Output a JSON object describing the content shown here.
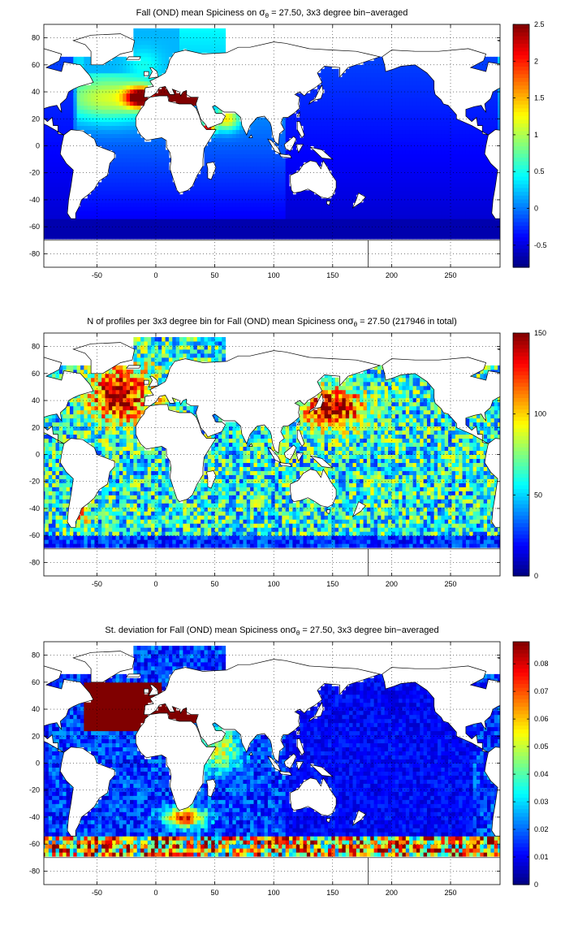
{
  "chart_data": [
    {
      "type": "heatmap",
      "subtype": "global-map-bin-averaged",
      "title_prefix": "Fall (OND) mean Spiciness on ",
      "title_sigma": "σ",
      "title_sub": "θ",
      "title_suffix": " = 27.50, 3x3 degree bin−averaged",
      "xlim": [
        -95,
        292
      ],
      "ylim": [
        -90,
        90
      ],
      "x_ticks": [
        -50,
        0,
        50,
        100,
        150,
        200,
        250
      ],
      "y_ticks": [
        -80,
        -60,
        -40,
        -20,
        0,
        20,
        40,
        60,
        80
      ],
      "grid": "dotted",
      "colorbar": {
        "min": -0.8,
        "max": 2.5,
        "ticks": [
          "-0.5",
          "0",
          "0.5",
          "1",
          "1.5",
          "2",
          "2.5"
        ]
      },
      "field": "spice"
    },
    {
      "type": "heatmap",
      "subtype": "global-map-profile-counts",
      "title_prefix": "N of profiles per 3x3 degree bin for Fall (OND) mean Spiciness on",
      "title_sigma": "σ",
      "title_sub": "θ",
      "title_suffix": " = 27.50 (217946 in total)",
      "xlim": [
        -95,
        292
      ],
      "ylim": [
        -90,
        90
      ],
      "x_ticks": [
        -50,
        0,
        50,
        100,
        150,
        200,
        250
      ],
      "y_ticks": [
        -80,
        -60,
        -40,
        -20,
        0,
        20,
        40,
        60,
        80
      ],
      "grid": "dotted",
      "colorbar": {
        "min": 0,
        "max": 150,
        "ticks": [
          "0",
          "50",
          "100",
          "150"
        ]
      },
      "field": "count"
    },
    {
      "type": "heatmap",
      "subtype": "global-map-standard-deviation",
      "title_prefix": "St. deviation for Fall (OND) mean Spiciness on",
      "title_sigma": "σ",
      "title_sub": "θ",
      "title_suffix": " = 27.50, 3x3 degree bin−averaged",
      "xlim": [
        -95,
        292
      ],
      "ylim": [
        -90,
        90
      ],
      "x_ticks": [
        -50,
        0,
        50,
        100,
        150,
        200,
        250
      ],
      "y_ticks": [
        -80,
        -60,
        -40,
        -20,
        0,
        20,
        40,
        60,
        80
      ],
      "grid": "dotted",
      "colorbar": {
        "min": 0,
        "max": 0.088,
        "ticks": [
          "0",
          "0.01",
          "0.02",
          "0.03",
          "0.04",
          "0.05",
          "0.06",
          "0.07",
          "0.08"
        ]
      },
      "field": "std"
    }
  ],
  "colormap": "jet",
  "land_color": "#ffffff",
  "coast_color": "#000000"
}
